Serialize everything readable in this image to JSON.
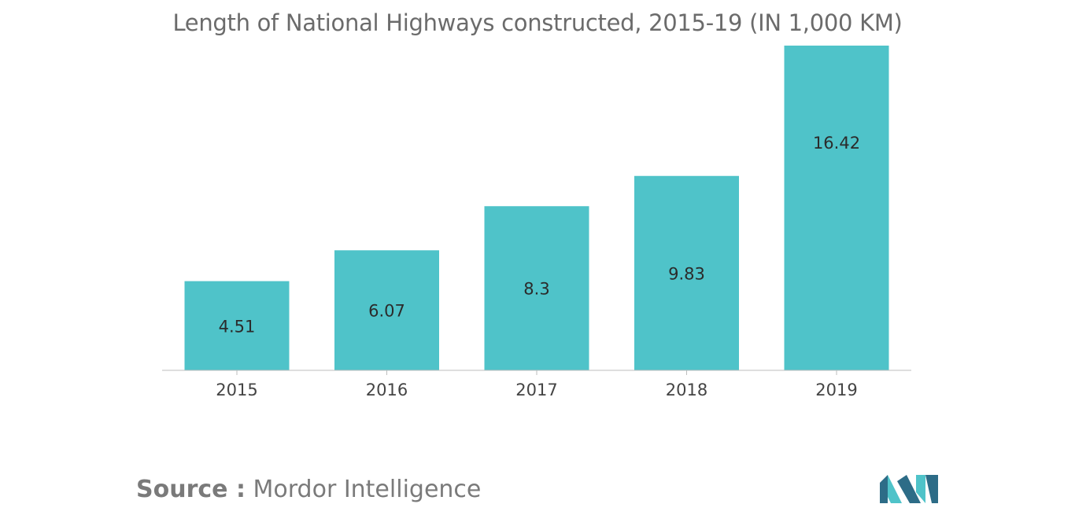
{
  "colors": {
    "bar": "#4fc3c9",
    "axis": "#bdbdbd",
    "text": "#6b6b6b",
    "logo_dark": "#2d6c87",
    "logo_light": "#4fc3c9"
  },
  "chart_data": {
    "type": "bar",
    "title": "Length of National Highways constructed, 2015-19 (IN 1,000 KM)",
    "categories": [
      "2015",
      "2016",
      "2017",
      "2018",
      "2019"
    ],
    "values": [
      4.51,
      6.07,
      8.3,
      9.83,
      16.42
    ],
    "data_labels": [
      "4.51",
      "6.07",
      "8.3",
      "9.83",
      "16.42"
    ],
    "xlabel": "",
    "ylabel": "",
    "grid": false,
    "ylim": [
      0,
      10
    ]
  },
  "source": {
    "label": "Source :",
    "value": "Mordor Intelligence"
  },
  "logo": {
    "icon": "mordor-intelligence-logo-icon"
  }
}
